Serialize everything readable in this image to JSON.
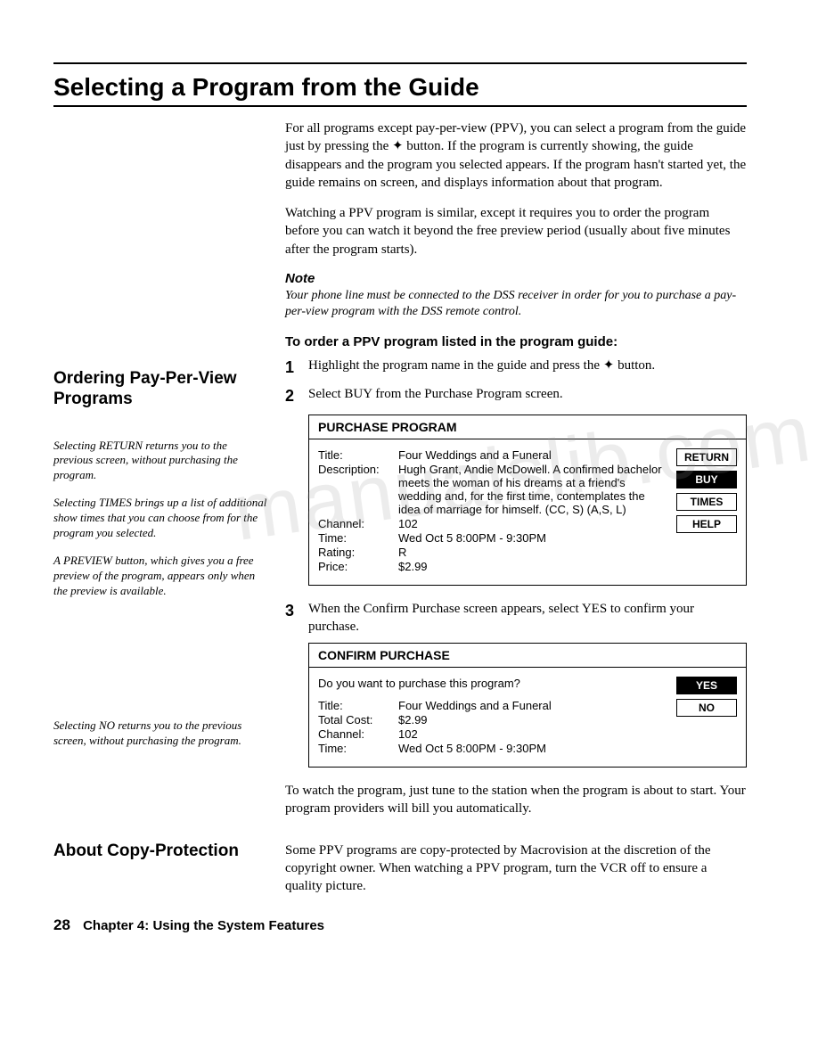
{
  "title": "Selecting a Program from the Guide",
  "intro1": "For all programs except pay-per-view (PPV), you can select a program from the guide just by pressing the ✦ button. If the program is currently showing, the guide disappears and the program you selected appears. If the program hasn't started yet, the guide remains on screen, and displays information about that program.",
  "intro2": "Watching a PPV program is similar, except it requires you to order the program before you can watch it beyond the free preview period (usually about five minutes after the program starts).",
  "note_head": "Note",
  "note_body": "Your phone line must be connected to the DSS receiver in order for you to purchase a pay-per-view program with the DSS remote control.",
  "ordering": {
    "left_heading": "Ordering Pay-Per-View Programs",
    "side1": "Selecting RETURN returns you to the previous screen, without purchasing the program.",
    "side2": "Selecting TIMES brings up a list of additional show times that you can choose from for the program you selected.",
    "side3": "A PREVIEW button, which gives you a free preview of the program, appears only when the preview is available.",
    "side4": "Selecting NO returns you to the previous screen, without purchasing the program.",
    "proc_head": "To order a PPV program listed in the program guide:",
    "step1": "Highlight the program name in the guide and press the ✦ button.",
    "step2": "Select BUY from the Purchase Program screen.",
    "step3": "When the Confirm Purchase screen appears, select YES to confirm your purchase.",
    "outro": "To watch the program, just tune to the station when the program is about to start. Your program providers will bill you automatically."
  },
  "purchase_screen": {
    "title": "PURCHASE PROGRAM",
    "rows": [
      {
        "label": "Title:",
        "value": "Four Weddings and a Funeral"
      },
      {
        "label": "Description:",
        "value": "Hugh Grant, Andie McDowell. A confirmed bachelor meets the woman of his dreams at a friend's wedding and, for the first time, contemplates the idea of marriage for himself. (CC, S) (A,S, L)"
      },
      {
        "label": "Channel:",
        "value": "102"
      },
      {
        "label": "Time:",
        "value": "Wed Oct 5 8:00PM - 9:30PM"
      },
      {
        "label": "Rating:",
        "value": "R"
      },
      {
        "label": "Price:",
        "value": "$2.99"
      }
    ],
    "buttons": [
      {
        "label": "RETURN",
        "inv": false
      },
      {
        "label": "BUY",
        "inv": true
      },
      {
        "label": "TIMES",
        "inv": false
      },
      {
        "label": "HELP",
        "inv": false
      }
    ]
  },
  "confirm_screen": {
    "title": "CONFIRM PURCHASE",
    "prompt": "Do you want to purchase this program?",
    "rows": [
      {
        "label": "Title:",
        "value": "Four Weddings and a Funeral"
      },
      {
        "label": "Total Cost:",
        "value": "$2.99"
      },
      {
        "label": "Channel:",
        "value": "102"
      },
      {
        "label": "Time:",
        "value": "Wed Oct 5 8:00PM - 9:30PM"
      }
    ],
    "buttons": [
      {
        "label": "YES",
        "inv": true
      },
      {
        "label": "NO",
        "inv": false
      }
    ]
  },
  "about": {
    "heading": "About Copy-Protection",
    "body": "Some PPV programs are copy-protected by Macrovision at the discretion of the copyright owner. When watching a PPV program, turn the VCR off to ensure a quality picture."
  },
  "footer": {
    "page": "28",
    "chapter": "Chapter 4: Using the System Features"
  },
  "watermark": "manualslib.com"
}
